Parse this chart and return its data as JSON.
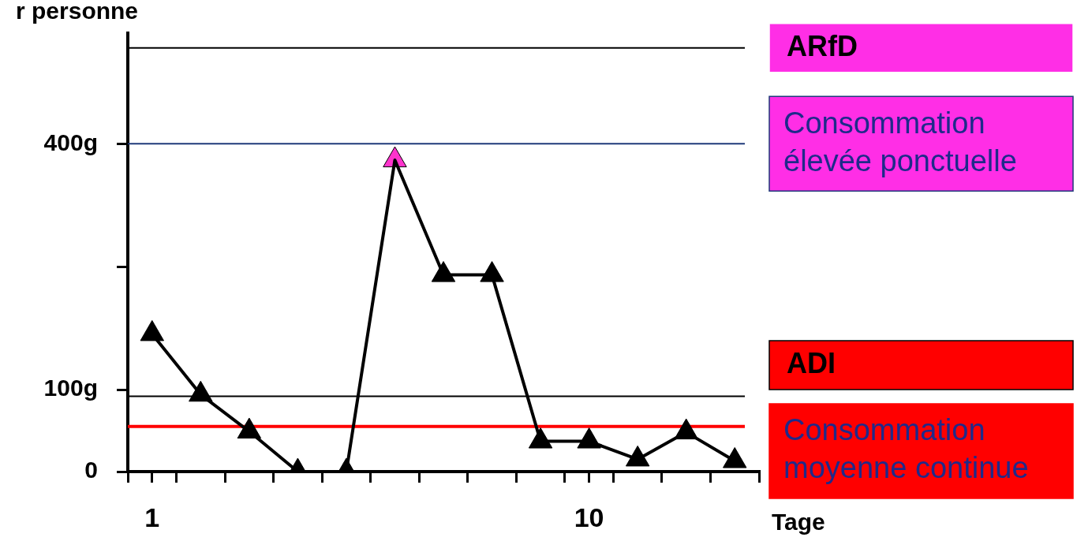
{
  "chart_data": {
    "type": "line",
    "xlabel": "Tage",
    "ylabel": "r personne",
    "x": [
      1,
      2,
      3,
      4,
      5,
      6,
      7,
      8,
      9,
      10,
      11,
      12,
      13
    ],
    "series": [
      {
        "color": "#000000",
        "colors": [
          "#000000",
          "#000000",
          "#000000",
          "#000000",
          "#000000",
          "#ff33cc",
          "#000000",
          "#000000",
          "#000000",
          "#000000",
          "#000000",
          "#000000",
          "#000000"
        ],
        "values": [
          168,
          94,
          49,
          0,
          0,
          380,
          240,
          240,
          37,
          37,
          15,
          48,
          13
        ]
      }
    ],
    "xlim": [
      0.5,
      13.5
    ],
    "xticks": [
      {
        "value": 0.5,
        "label": null
      },
      {
        "value": 1,
        "label": "1"
      },
      {
        "value": 1.5,
        "label": null
      },
      {
        "value": 2.5,
        "label": null
      },
      {
        "value": 3.5,
        "label": null
      },
      {
        "value": 4.5,
        "label": null
      },
      {
        "value": 5.5,
        "label": null
      },
      {
        "value": 6.5,
        "label": null
      },
      {
        "value": 7.5,
        "label": null
      },
      {
        "value": 8.5,
        "label": null
      },
      {
        "value": 9.5,
        "label": null
      },
      {
        "value": 10,
        "label": "10"
      },
      {
        "value": 10.5,
        "label": null
      },
      {
        "value": 11.5,
        "label": null
      },
      {
        "value": 12.5,
        "label": null
      },
      {
        "value": 13.5,
        "label": null
      }
    ],
    "ylim": [
      0,
      535
    ],
    "yticks": [
      0,
      {
        "value": 100,
        "label": "100g"
      },
      {
        "value": 250,
        "label": null
      },
      {
        "value": 400,
        "label": "400g"
      }
    ],
    "ref_lines": [
      {
        "axis": "y",
        "value": 517,
        "label": "ARfD",
        "color": "#000000"
      },
      {
        "axis": "y",
        "value": 400,
        "label": "Consommation élevée ponctuelle",
        "color": "#1f3a7a"
      },
      {
        "axis": "y",
        "value": 92,
        "label": "ADI",
        "color": "#000000"
      },
      {
        "axis": "y",
        "value": 55,
        "label": "Consommation moyenne continue",
        "color": "#ff0000"
      }
    ],
    "marker": "triangle",
    "line_style": "solid",
    "grid": false,
    "legend": false
  }
}
